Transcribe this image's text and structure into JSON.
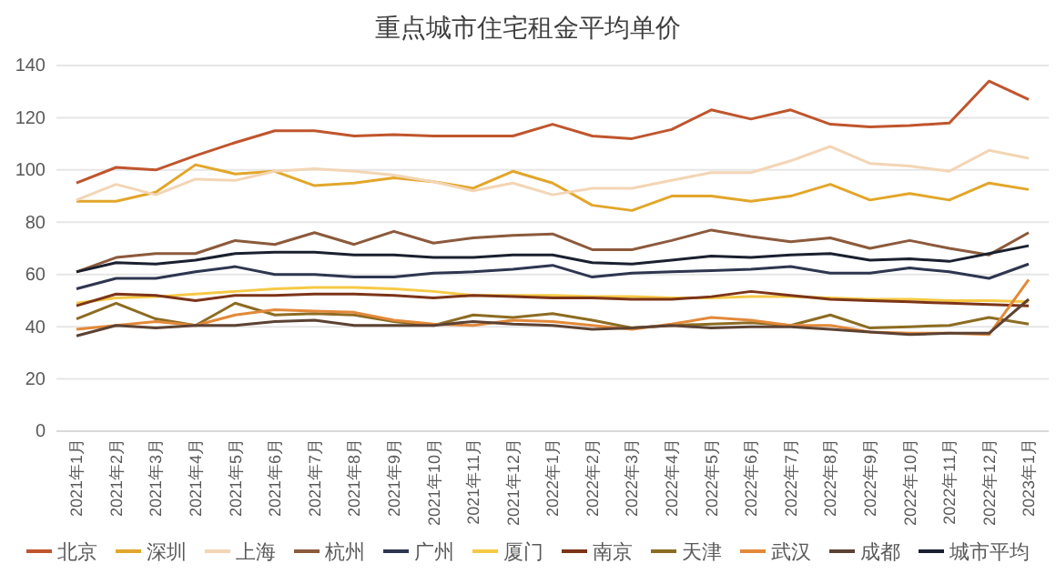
{
  "chart_data": {
    "type": "line",
    "title": "重点城市住宅租金平均单价",
    "categories": [
      "2021年1月",
      "2021年2月",
      "2021年3月",
      "2021年4月",
      "2021年5月",
      "2021年6月",
      "2021年7月",
      "2021年8月",
      "2021年9月",
      "2021年10月",
      "2021年11月",
      "2021年12月",
      "2022年1月",
      "2022年2月",
      "2022年3月",
      "2022年4月",
      "2022年5月",
      "2022年6月",
      "2022年7月",
      "2022年8月",
      "2022年9月",
      "2022年10月",
      "2022年11月",
      "2022年12月",
      "2023年1月"
    ],
    "ylim": [
      0,
      140
    ],
    "yticks": [
      0,
      20,
      40,
      60,
      80,
      100,
      120,
      140
    ],
    "grid": "y",
    "legend": "bottom",
    "marker": "none",
    "line_style": "solid",
    "series": [
      {
        "name": "北京",
        "color": "#c0552d",
        "values": [
          95,
          101,
          100,
          105.5,
          110.5,
          115,
          115,
          113,
          113.5,
          113,
          113,
          113,
          117.5,
          113,
          112,
          115.5,
          123,
          119.5,
          123,
          117.5,
          116.5,
          117,
          118,
          134,
          127
        ]
      },
      {
        "name": "深圳",
        "color": "#e2a62a",
        "values": [
          88,
          88,
          91.5,
          102,
          98.5,
          99.5,
          94,
          95,
          97,
          95.5,
          93,
          99.5,
          95,
          86.5,
          84.5,
          90,
          90,
          88,
          90,
          94.5,
          88.5,
          91,
          88.5,
          95,
          92.5
        ]
      },
      {
        "name": "上海",
        "color": "#f3d5b5",
        "values": [
          88.5,
          94.5,
          90.5,
          96.5,
          96,
          99.5,
          100.5,
          99.5,
          98,
          95.5,
          92,
          95,
          90.5,
          93,
          93,
          96,
          99,
          99,
          103.5,
          109,
          102.5,
          101.5,
          99.5,
          107.5,
          104.5
        ]
      },
      {
        "name": "杭州",
        "color": "#8c5a3c",
        "values": [
          61,
          66.5,
          68,
          68,
          73,
          71.5,
          76,
          71.5,
          76.5,
          72,
          74,
          75,
          75.5,
          69.5,
          69.5,
          73,
          77,
          74.5,
          72.5,
          74,
          70,
          73,
          70,
          67.5,
          76
        ]
      },
      {
        "name": "广州",
        "color": "#2e3650",
        "values": [
          54.5,
          58.5,
          58.5,
          61,
          63,
          60,
          60,
          59,
          59,
          60.5,
          61,
          62,
          63.5,
          59,
          60.5,
          61,
          61.5,
          62,
          63,
          60.5,
          60.5,
          62.5,
          61,
          58.5,
          64
        ]
      },
      {
        "name": "厦门",
        "color": "#f6c945",
        "values": [
          49,
          51,
          51.5,
          52.5,
          53.5,
          54.5,
          55,
          55,
          54.5,
          53.5,
          52,
          52,
          52,
          51.5,
          51.5,
          51,
          51,
          51.5,
          51.5,
          51,
          50.5,
          50.5,
          50,
          50,
          49.5
        ]
      },
      {
        "name": "南京",
        "color": "#7d3418",
        "values": [
          48,
          52.5,
          52,
          50,
          52,
          52,
          52.5,
          52.5,
          52,
          51,
          52,
          51.5,
          51,
          51,
          50.5,
          50.5,
          51.5,
          53.5,
          52,
          50.5,
          50,
          49.5,
          49,
          48.5,
          48
        ]
      },
      {
        "name": "天津",
        "color": "#8c6c22",
        "values": [
          43,
          49,
          43,
          40.5,
          49,
          44.5,
          45,
          44.5,
          42,
          40.5,
          44.5,
          43.5,
          45,
          42.5,
          39.5,
          40.5,
          41,
          41.5,
          40.5,
          44.5,
          39.5,
          40,
          40.5,
          43.5,
          41
        ]
      },
      {
        "name": "武汉",
        "color": "#e3893a",
        "values": [
          39,
          40.5,
          42,
          40.5,
          44.5,
          46.5,
          46,
          45.5,
          42.5,
          41,
          40.5,
          42.5,
          42,
          40.5,
          39,
          41,
          43.5,
          42.5,
          40.5,
          40.5,
          38,
          37.5,
          37.5,
          37,
          58
        ]
      },
      {
        "name": "成都",
        "color": "#5c4233",
        "values": [
          36.5,
          40.5,
          39.5,
          40.5,
          40.5,
          42,
          42.5,
          40.5,
          40.5,
          40.5,
          42,
          41,
          40.5,
          39,
          39.5,
          40.5,
          39.5,
          40,
          40,
          39,
          38,
          37,
          37.5,
          37.5,
          50.5
        ]
      },
      {
        "name": "城市平均",
        "color": "#1b2030",
        "values": [
          61,
          64.5,
          64,
          65.5,
          68,
          68.5,
          68.5,
          67.5,
          67.5,
          66.5,
          66.5,
          67.5,
          67.5,
          64.5,
          64,
          65.5,
          67,
          66.5,
          67.5,
          68,
          65.5,
          66,
          65,
          68,
          71
        ]
      }
    ]
  }
}
